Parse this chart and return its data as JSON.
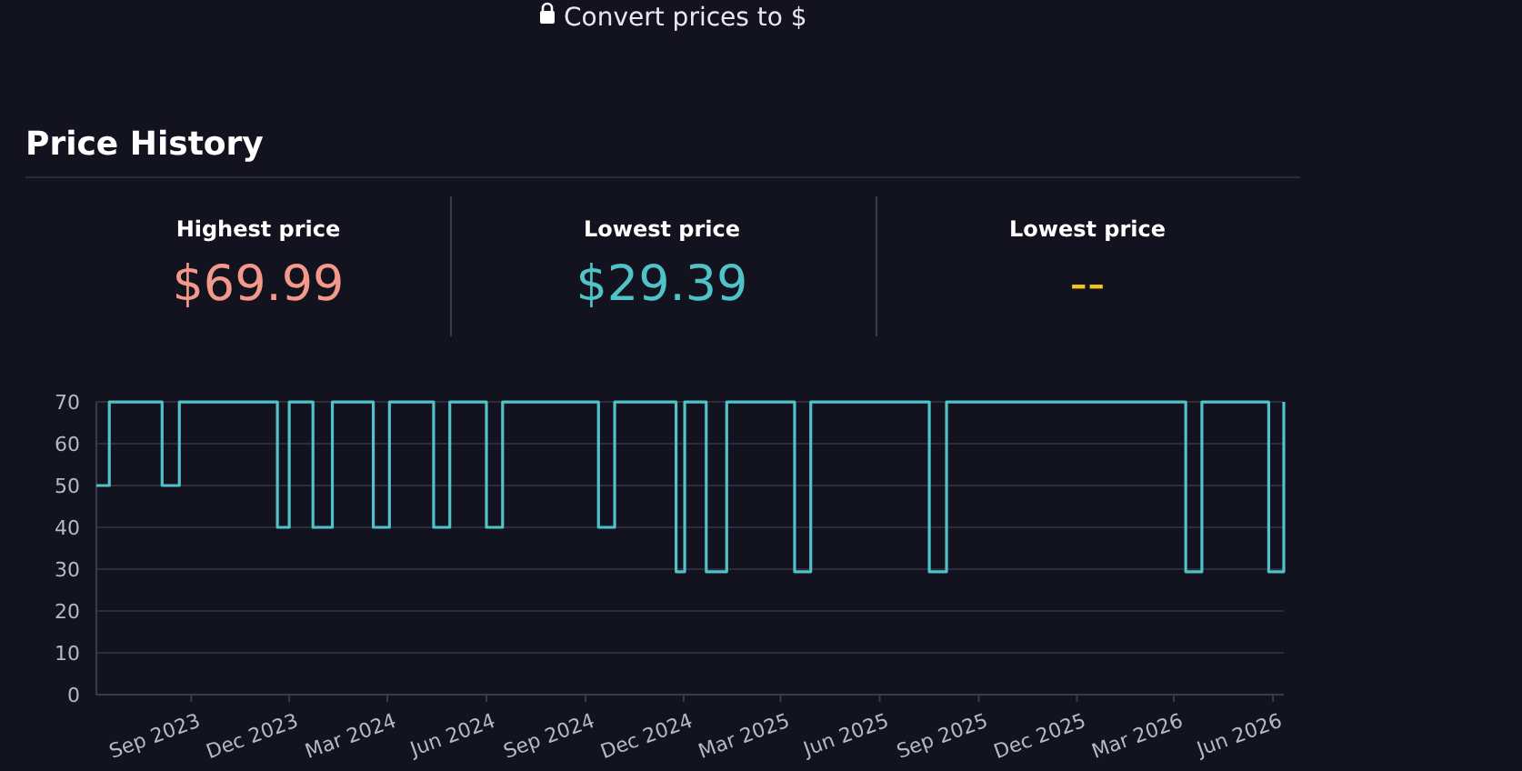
{
  "chart_data": {
    "type": "step",
    "title": "Price History",
    "annotations": [
      "Convert prices to $",
      "Highest price",
      "$69.99",
      "Lowest price",
      "$29.39",
      "Lowest price",
      "--"
    ],
    "series": [
      {
        "color": "#4fc3c8",
        "x": [
          "2023-06-05",
          "2023-06-17",
          "2023-08-05",
          "2023-08-21",
          "2023-11-20",
          "2023-12-01",
          "2023-12-23",
          "2024-01-10",
          "2024-02-17",
          "2024-03-03",
          "2024-04-13",
          "2024-04-28",
          "2024-06-01",
          "2024-06-16",
          "2024-09-13",
          "2024-09-28",
          "2024-11-24",
          "2024-12-02",
          "2024-12-22",
          "2025-01-10",
          "2025-03-14",
          "2025-03-29",
          "2025-07-17",
          "2025-08-02",
          "2026-03-12",
          "2026-03-27",
          "2026-05-28",
          "2026-06-11"
        ],
        "values": [
          50,
          69.99,
          50,
          69.99,
          40,
          69.99,
          40,
          69.99,
          40,
          69.99,
          40,
          69.99,
          40,
          69.99,
          40,
          69.99,
          29.39,
          69.99,
          29.39,
          69.99,
          29.39,
          69.99,
          29.39,
          69.99,
          29.39,
          69.99,
          29.39,
          69.99
        ]
      }
    ],
    "xlim": [
      "2023-06-05",
      "2026-06-11"
    ],
    "xticks": [
      {
        "value": "2023-09-01",
        "label": "Sep 2023"
      },
      {
        "value": "2023-12-01",
        "label": "Dec 2023"
      },
      {
        "value": "2024-03-01",
        "label": "Mar 2024"
      },
      {
        "value": "2024-06-01",
        "label": "Jun 2024"
      },
      {
        "value": "2024-09-01",
        "label": "Sep 2024"
      },
      {
        "value": "2024-12-01",
        "label": "Dec 2024"
      },
      {
        "value": "2025-03-01",
        "label": "Mar 2025"
      },
      {
        "value": "2025-06-01",
        "label": "Jun 2025"
      },
      {
        "value": "2025-09-01",
        "label": "Sep 2025"
      },
      {
        "value": "2025-12-01",
        "label": "Dec 2025"
      },
      {
        "value": "2026-03-01",
        "label": "Mar 2026"
      },
      {
        "value": "2026-06-01",
        "label": "Jun 2026"
      }
    ],
    "ylim": [
      0,
      70
    ],
    "yticks": [
      0,
      10,
      20,
      30,
      40,
      50,
      60,
      70
    ],
    "grid": "y",
    "marker": "none",
    "line_style": "solid"
  }
}
